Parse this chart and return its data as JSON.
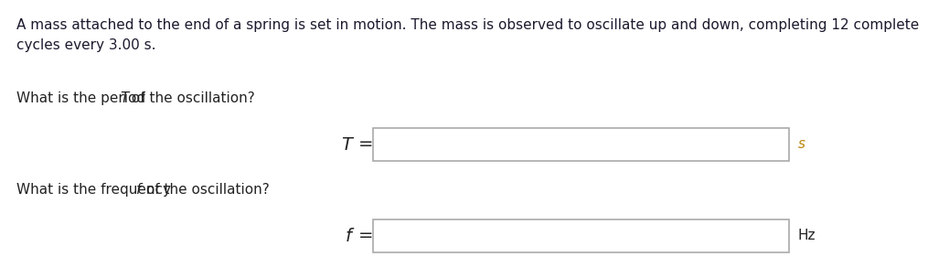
{
  "background_color": "#ffffff",
  "text_color_dark": "#1a1a2e",
  "text_color_black": "#222222",
  "text_color_unit_s": "#b8860b",
  "box_edge_color": "#aaaaaa",
  "intro_line1": "A mass attached to the end of a spring is set in motion. The mass is observed to oscillate up and down, completing 12 complete",
  "intro_line2": "cycles every 3.00 s.",
  "q1_pre": "What is the period ",
  "q1_var": "T",
  "q1_post": " of the oscillation?",
  "q2_pre": "What is the frequency ",
  "q2_var": "f",
  "q2_post": " of the oscillation?",
  "unit1": "s",
  "unit2": "Hz",
  "fontsize_intro": 11,
  "fontsize_question": 11,
  "fontsize_label": 12,
  "fontsize_unit": 11
}
